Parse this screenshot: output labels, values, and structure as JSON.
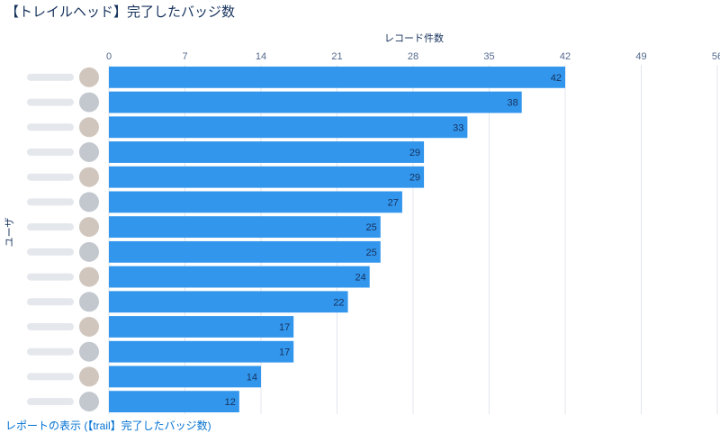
{
  "header": {
    "title": "【トレイルヘッド】完了したバッジ数"
  },
  "footer": {
    "report_link": "レポートの表示 (【trail】完了したバッジ数)"
  },
  "colors": {
    "bar": "#3296ed",
    "grid": "#e0e5ee",
    "text": "#16325c",
    "link": "#0070d2"
  },
  "chart_data": {
    "type": "bar",
    "orientation": "horizontal",
    "xlabel": "レコード件数",
    "ylabel": "ユーザ",
    "xlim": [
      0,
      56
    ],
    "xticks": [
      0,
      7,
      14,
      21,
      28,
      35,
      42,
      49,
      56
    ],
    "categories": [
      "",
      "",
      "",
      "",
      "",
      "",
      "",
      "",
      "",
      "",
      "",
      "",
      "",
      ""
    ],
    "values": [
      42,
      38,
      33,
      29,
      29,
      27,
      25,
      25,
      24,
      22,
      17,
      17,
      14,
      12
    ],
    "grid": true,
    "data_labels": true
  }
}
